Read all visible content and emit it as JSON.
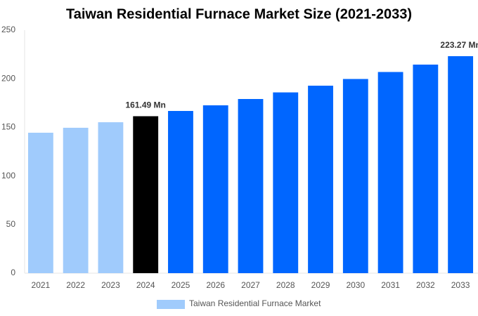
{
  "chart_data": {
    "type": "bar",
    "title": "Taiwan Residential Furnace Market Size (2021-2033)",
    "categories": [
      "2021",
      "2022",
      "2023",
      "2024",
      "2025",
      "2026",
      "2027",
      "2028",
      "2029",
      "2030",
      "2031",
      "2032",
      "2033"
    ],
    "series": [
      {
        "name": "Taiwan Residential Furnace Market",
        "color": "#a0cbfc",
        "colors": [
          "#a0cbfc",
          "#a0cbfc",
          "#a0cbfc",
          "#000000",
          "#0066ff",
          "#0066ff",
          "#0066ff",
          "#0066ff",
          "#0066ff",
          "#0066ff",
          "#0066ff",
          "#0066ff",
          "#0066ff"
        ],
        "values": [
          144.5,
          149.6,
          155.3,
          161.49,
          166.9,
          172.7,
          179.2,
          186,
          192.9,
          199.8,
          207,
          214.6,
          223.27
        ],
        "value_labels": [
          null,
          null,
          null,
          "161.49 Mn",
          null,
          null,
          null,
          null,
          null,
          null,
          null,
          null,
          "223.27 Mn"
        ]
      }
    ],
    "ylim": [
      0,
      250
    ],
    "yticks": [
      0,
      50,
      100,
      150,
      200,
      250
    ],
    "grid": false
  }
}
